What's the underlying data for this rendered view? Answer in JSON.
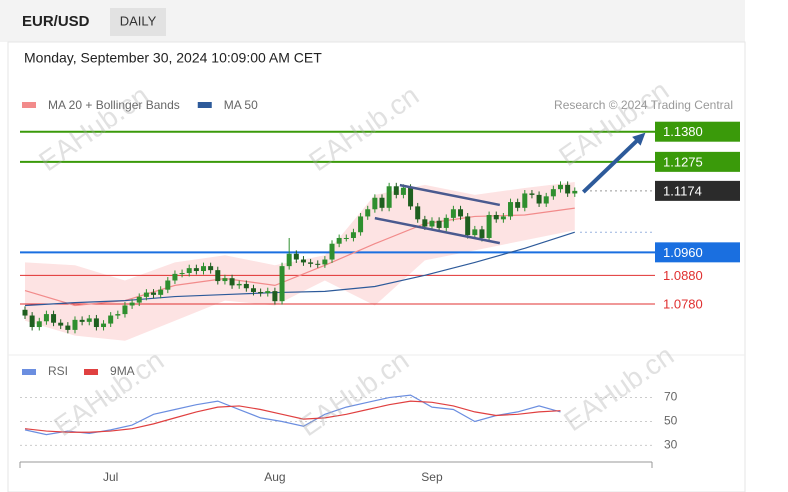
{
  "chart_data": {
    "type": "candlestick",
    "title": "EUR/USD",
    "timeframe": "DAILY",
    "timestamp": "Monday, September 30, 2024 10:09:00 AM CET",
    "credit": "Research © 2024 Trading Central",
    "watermark": "EAHub.cn",
    "categories": [
      null,
      null,
      null,
      null,
      null,
      null,
      null,
      null,
      null,
      null,
      null,
      null,
      "Jul",
      null,
      null,
      null,
      null,
      null,
      null,
      null,
      null,
      null,
      null,
      null,
      null,
      null,
      null,
      null,
      null,
      null,
      null,
      null,
      null,
      null,
      null,
      "Aug",
      null,
      null,
      null,
      null,
      null,
      null,
      null,
      null,
      null,
      null,
      null,
      null,
      null,
      null,
      null,
      null,
      null,
      null,
      null,
      null,
      null,
      "Sep",
      null,
      null,
      null,
      null,
      null,
      null,
      null,
      null,
      null,
      null,
      null,
      null,
      null,
      null,
      null,
      null,
      null,
      null,
      null,
      null
    ],
    "open": [
      1.076,
      1.074,
      1.07,
      1.072,
      1.0745,
      1.0715,
      1.0705,
      1.069,
      1.0725,
      1.0718,
      1.073,
      1.07,
      1.0712,
      1.074,
      1.0745,
      1.0775,
      1.0785,
      1.0805,
      1.082,
      1.0812,
      1.083,
      1.0862,
      1.0885,
      1.0888,
      1.0905,
      1.0895,
      1.0912,
      1.0898,
      1.086,
      1.087,
      1.0845,
      1.085,
      1.0835,
      1.0822,
      1.0818,
      1.0825,
      1.079,
      1.0912,
      1.0955,
      1.0935,
      1.0925,
      1.092,
      1.0918,
      1.0935,
      1.099,
      1.101,
      1.101,
      1.103,
      1.1085,
      1.111,
      1.115,
      1.1115,
      1.119,
      1.116,
      1.1185,
      1.112,
      1.1075,
      1.105,
      1.107,
      1.1045,
      1.108,
      1.111,
      1.1085,
      1.102,
      1.104,
      1.101,
      1.109,
      1.1075,
      1.1085,
      1.1135,
      1.1115,
      1.1165,
      1.116,
      1.113,
      1.1155,
      1.118,
      1.1195,
      1.1165
    ],
    "high": [
      1.0772,
      1.0752,
      1.0732,
      1.0757,
      1.0757,
      1.0727,
      1.0717,
      1.0737,
      1.0737,
      1.0742,
      1.0742,
      1.0724,
      1.0752,
      1.0757,
      1.0787,
      1.0797,
      1.0817,
      1.0832,
      1.0832,
      1.0842,
      1.0874,
      1.0897,
      1.09,
      1.0917,
      1.0917,
      1.0924,
      1.0924,
      1.091,
      1.0882,
      1.0882,
      1.0862,
      1.0862,
      1.0847,
      1.0834,
      1.0837,
      1.0837,
      1.0924,
      1.101,
      1.0967,
      1.0947,
      1.0937,
      1.0932,
      1.0947,
      1.1002,
      1.1022,
      1.1022,
      1.1042,
      1.1097,
      1.1122,
      1.1162,
      1.1162,
      1.1202,
      1.1202,
      1.1197,
      1.1197,
      1.1132,
      1.1087,
      1.1082,
      1.1082,
      1.1092,
      1.1122,
      1.1122,
      1.1097,
      1.1052,
      1.1052,
      1.1102,
      1.1102,
      1.1097,
      1.1147,
      1.1147,
      1.1177,
      1.1177,
      1.1172,
      1.1167,
      1.1192,
      1.1207,
      1.1207,
      1.1186
    ],
    "low": [
      1.0728,
      1.0688,
      1.0688,
      1.0708,
      1.0703,
      1.0693,
      1.0678,
      1.0678,
      1.0706,
      1.0706,
      1.0688,
      1.0688,
      1.07,
      1.0728,
      1.0733,
      1.0763,
      1.0773,
      1.0793,
      1.08,
      1.08,
      1.0818,
      1.085,
      1.0873,
      1.0876,
      1.0883,
      1.0883,
      1.0886,
      1.0848,
      1.0848,
      1.0833,
      1.0833,
      1.0823,
      1.081,
      1.0806,
      1.0806,
      1.0778,
      1.0778,
      1.09,
      1.0923,
      1.0913,
      1.0908,
      1.0906,
      1.0906,
      1.0923,
      1.0978,
      1.0998,
      1.0998,
      1.1018,
      1.1073,
      1.1098,
      1.1103,
      1.1103,
      1.1148,
      1.1148,
      1.1108,
      1.1063,
      1.1038,
      1.1038,
      1.1033,
      1.1033,
      1.1068,
      1.1073,
      1.1008,
      1.1008,
      1.0998,
      1.0998,
      1.1063,
      1.1063,
      1.1073,
      1.1103,
      1.1103,
      1.1148,
      1.1118,
      1.1118,
      1.1143,
      1.1168,
      1.1153,
      1.1153
    ],
    "close": [
      1.074,
      1.07,
      1.072,
      1.0745,
      1.0715,
      1.0705,
      1.069,
      1.0725,
      1.0718,
      1.073,
      1.07,
      1.0712,
      1.074,
      1.0745,
      1.0775,
      1.0785,
      1.0805,
      1.082,
      1.0812,
      1.083,
      1.0862,
      1.0885,
      1.0888,
      1.0905,
      1.0895,
      1.0912,
      1.0898,
      1.086,
      1.087,
      1.0845,
      1.085,
      1.0835,
      1.0822,
      1.0818,
      1.0825,
      1.079,
      1.0912,
      1.0955,
      1.0935,
      1.0925,
      1.092,
      1.0918,
      1.0935,
      1.099,
      1.101,
      1.101,
      1.103,
      1.1085,
      1.111,
      1.115,
      1.1115,
      1.119,
      1.116,
      1.1185,
      1.112,
      1.1075,
      1.105,
      1.107,
      1.1045,
      1.108,
      1.111,
      1.1085,
      1.102,
      1.104,
      1.101,
      1.109,
      1.1075,
      1.1085,
      1.1135,
      1.1115,
      1.1165,
      1.116,
      1.113,
      1.1155,
      1.118,
      1.1195,
      1.1165,
      1.1174
    ],
    "up_color": "#2f8f2f",
    "down_color": "#1f5f1f",
    "ylim": [
      1.062,
      1.156
    ],
    "overlays": [
      {
        "name": "MA 20 + Bollinger Bands",
        "color": "#f28b8b",
        "band_color": "#fde3e3",
        "x": [
          0,
          7,
          14,
          21,
          28,
          35,
          42,
          49,
          56,
          63,
          70,
          77
        ],
        "values": [
          1.0827,
          1.0775,
          1.0792,
          1.0845,
          1.0869,
          1.0845,
          1.0915,
          1.099,
          1.106,
          1.1085,
          1.109,
          1.1114
        ],
        "upper": [
          1.0925,
          1.0915,
          1.0862,
          1.0925,
          1.095,
          1.0915,
          1.095,
          1.116,
          1.1195,
          1.116,
          1.1184,
          1.1205
        ],
        "lower": [
          1.0722,
          1.067,
          1.0652,
          1.0722,
          1.0792,
          1.0775,
          1.0862,
          1.0775,
          1.0932,
          1.0967,
          1.1002,
          1.1037
        ]
      },
      {
        "name": "MA 50",
        "color": "#2d5a9a",
        "x": [
          0,
          7,
          14,
          21,
          28,
          35,
          42,
          49,
          56,
          63,
          70,
          77
        ],
        "values": [
          1.0775,
          1.0785,
          1.0792,
          1.0806,
          1.0813,
          1.082,
          1.0824,
          1.0841,
          1.088,
          1.0925,
          1.0974,
          1.103
        ]
      }
    ],
    "levels": [
      {
        "value": 1.138,
        "label": "1.1380",
        "color": "#3a9a0a",
        "box": true
      },
      {
        "value": 1.1275,
        "label": "1.1275",
        "color": "#3a9a0a",
        "box": true
      },
      {
        "value": 1.1174,
        "label": "1.1174",
        "color": "#2b2b2b",
        "box": true,
        "dotted": true
      },
      {
        "value": 1.096,
        "label": "1.0960",
        "color": "#1a6fe0",
        "box": true
      },
      {
        "value": 1.088,
        "label": "1.0880",
        "color": "#e03030",
        "box": false
      },
      {
        "value": 1.078,
        "label": "1.0780",
        "color": "#e03030",
        "box": false
      }
    ],
    "guide_lines": [
      1.103
    ],
    "trendlines": [
      {
        "x": [
          52.5,
          66.5
        ],
        "values": [
          1.1194,
          1.1125
        ]
      },
      {
        "x": [
          49,
          66.5
        ],
        "values": [
          1.1079,
          1.0992
        ]
      }
    ],
    "arrow": {
      "x": [
        78.2,
        86.9
      ],
      "values": [
        1.117,
        1.1377
      ],
      "color": "#2d5a9a"
    },
    "rsi": {
      "type": "line",
      "ylim": [
        22,
        93
      ],
      "yticks": [
        30,
        50,
        70
      ],
      "x": [
        0,
        3,
        6,
        9,
        12,
        15,
        18,
        21,
        24,
        27,
        30,
        33,
        36,
        39,
        42,
        45,
        48,
        51,
        54,
        57,
        60,
        63,
        66,
        69,
        72,
        75
      ],
      "series": [
        {
          "name": "RSI",
          "color": "#6b8ee0",
          "values": [
            43,
            39,
            42,
            40,
            43,
            47,
            56,
            60,
            64,
            67,
            60,
            53,
            50,
            46,
            56,
            62,
            66,
            70,
            72,
            62,
            60,
            50,
            55,
            58,
            63,
            58
          ]
        },
        {
          "name": "9MA",
          "color": "#e04040",
          "values": [
            44,
            42,
            41,
            41,
            42,
            44,
            48,
            53,
            58,
            62,
            63,
            60,
            56,
            52,
            53,
            56,
            60,
            64,
            67,
            66,
            63,
            58,
            55,
            56,
            58,
            59
          ]
        }
      ]
    }
  }
}
